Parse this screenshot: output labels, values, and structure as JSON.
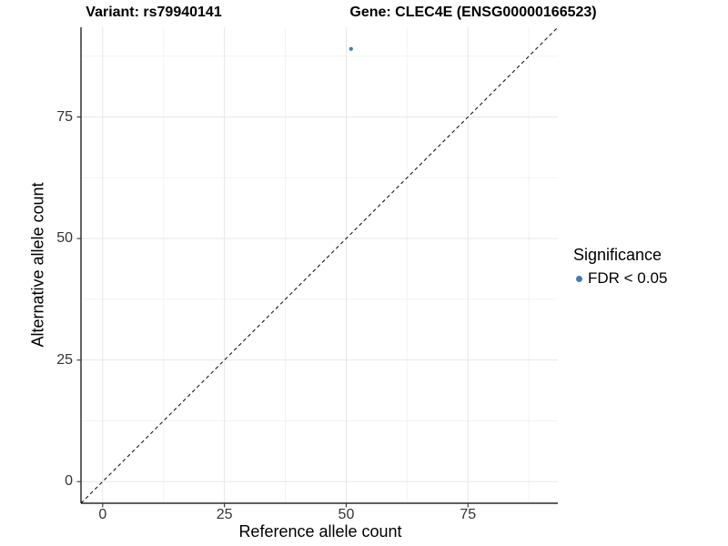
{
  "titles": {
    "variant": "Variant: rs79940141",
    "gene": "Gene: CLEC4E (ENSG00000166523)"
  },
  "legend": {
    "title": "Significance",
    "items": [
      {
        "label": "FDR < 0.05",
        "color": "#4679b2"
      }
    ]
  },
  "chart_data": {
    "type": "scatter",
    "title": "Variant: rs79940141 / Gene: CLEC4E (ENSG00000166523)",
    "xlabel": "Reference allele count",
    "ylabel": "Alternative allele count",
    "xlim": [
      -4.45,
      93.45
    ],
    "ylim": [
      -4.45,
      93.45
    ],
    "x_ticks": [
      0,
      25,
      50,
      75
    ],
    "y_ticks": [
      0,
      25,
      50,
      75
    ],
    "x_minor_ticks": [
      12.5,
      37.5,
      62.5,
      87.5
    ],
    "y_minor_ticks": [
      12.5,
      37.5,
      62.5,
      87.5
    ],
    "grid": true,
    "legend_position": "right",
    "series": [
      {
        "name": "FDR < 0.05",
        "points": [
          {
            "x": 51,
            "y": 89
          }
        ],
        "color": "#4679b2"
      }
    ],
    "reference_line": {
      "type": "identity",
      "slope": 1,
      "intercept": 0,
      "style": "dashed",
      "color": "#1a1a1a"
    },
    "style": {
      "grid_major_color": "#e7e7e7",
      "grid_minor_color": "#f3f3f3",
      "axis_line_color": "#000000",
      "tick_color": "#333333",
      "point_color": "#4679b2",
      "background": "#ffffff"
    }
  }
}
